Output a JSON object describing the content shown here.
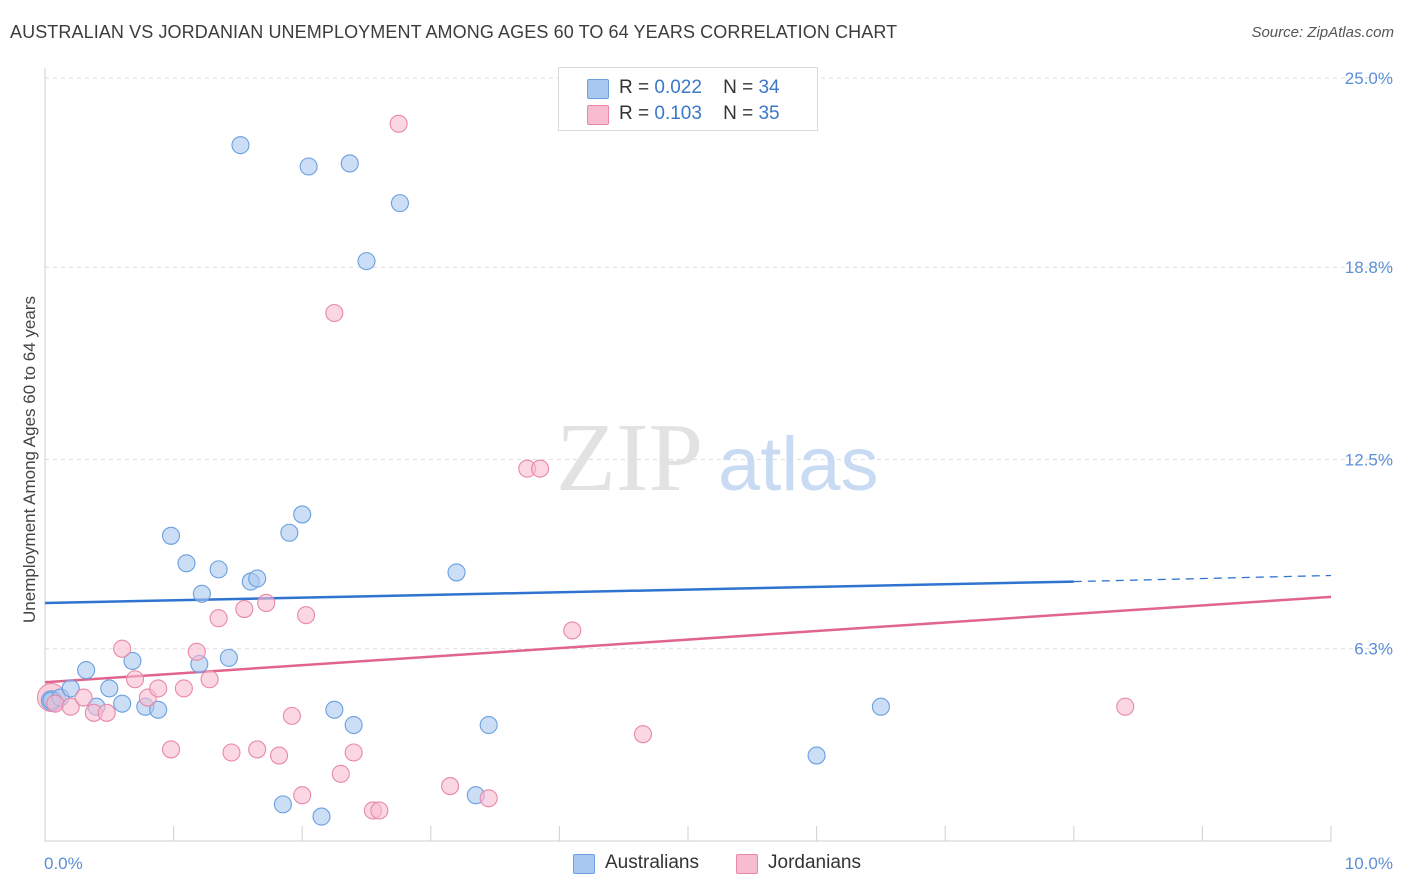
{
  "header": {
    "title": "AUSTRALIAN VS JORDANIAN UNEMPLOYMENT AMONG AGES 60 TO 64 YEARS CORRELATION CHART",
    "source": "Source: ZipAtlas.com"
  },
  "watermark": {
    "zip": "ZIP",
    "atlas": "atlas"
  },
  "legend": {
    "rows": [
      {
        "r_label": "R =",
        "r_value": "0.022",
        "n_label": "N =",
        "n_value": "34",
        "color": "#a8c8f0",
        "border": "#6a9fe0"
      },
      {
        "r_label": "R =",
        "r_value": "0.103",
        "n_label": "N =",
        "n_value": "35",
        "color": "#f8bcd0",
        "border": "#e888a8"
      }
    ]
  },
  "bottom_legend": {
    "australians": "Australians",
    "jordanians": "Jordanians"
  },
  "colors": {
    "blue_fill": "#a8c8f0",
    "blue_stroke": "#6a9fe0",
    "blue_line": "#2f74d0",
    "pink_fill": "#f8bcd0",
    "pink_stroke": "#e888a8",
    "pink_line": "#e0648c",
    "grid": "#dddddd",
    "axis_label": "#5b8fd6"
  },
  "chart_data": {
    "type": "scatter",
    "title": "AUSTRALIAN VS JORDANIAN UNEMPLOYMENT AMONG AGES 60 TO 64 YEARS CORRELATION CHART",
    "xlabel": "",
    "ylabel": "Unemployment Among Ages 60 to 64 years",
    "xlim": [
      0,
      10
    ],
    "ylim": [
      0,
      25
    ],
    "x_tick_labels": [
      "0.0%",
      "10.0%"
    ],
    "y_ticks": [
      6.3,
      12.5,
      18.8,
      25.0
    ],
    "y_tick_labels": [
      "6.3%",
      "12.5%",
      "18.8%",
      "25.0%"
    ],
    "grid": true,
    "legend_position": "top-center",
    "series": [
      {
        "name": "Australians",
        "r": 0.022,
        "n": 34,
        "trend": {
          "x0": 0,
          "y0": 7.8,
          "x1": 8,
          "y1": 8.5,
          "dash_to": 10,
          "dash_y": 8.7
        },
        "points": [
          [
            0.05,
            4.6
          ],
          [
            0.12,
            4.7
          ],
          [
            0.2,
            5.0
          ],
          [
            0.32,
            5.6
          ],
          [
            0.4,
            4.4
          ],
          [
            0.5,
            5.0
          ],
          [
            0.6,
            4.5
          ],
          [
            0.68,
            5.9
          ],
          [
            0.78,
            4.4
          ],
          [
            0.88,
            4.3
          ],
          [
            0.98,
            10.0
          ],
          [
            1.1,
            9.1
          ],
          [
            1.2,
            5.8
          ],
          [
            1.22,
            8.1
          ],
          [
            1.35,
            8.9
          ],
          [
            1.43,
            6.0
          ],
          [
            1.6,
            8.5
          ],
          [
            1.65,
            8.6
          ],
          [
            1.85,
            1.2
          ],
          [
            1.9,
            10.1
          ],
          [
            2.0,
            10.7
          ],
          [
            2.15,
            0.8
          ],
          [
            2.25,
            4.3
          ],
          [
            2.4,
            3.8
          ],
          [
            1.52,
            22.8
          ],
          [
            2.05,
            22.1
          ],
          [
            2.37,
            22.2
          ],
          [
            2.5,
            19.0
          ],
          [
            2.76,
            20.9
          ],
          [
            3.2,
            8.8
          ],
          [
            3.35,
            1.5
          ],
          [
            3.45,
            3.8
          ],
          [
            6.0,
            2.8
          ],
          [
            6.5,
            4.4
          ]
        ]
      },
      {
        "name": "Jordanians",
        "r": 0.103,
        "n": 35,
        "trend": {
          "x0": 0,
          "y0": 5.2,
          "x1": 10,
          "y1": 8.0
        },
        "points": [
          [
            0.08,
            4.5
          ],
          [
            0.2,
            4.4
          ],
          [
            0.3,
            4.7
          ],
          [
            0.38,
            4.2
          ],
          [
            0.48,
            4.2
          ],
          [
            0.6,
            6.3
          ],
          [
            0.7,
            5.3
          ],
          [
            0.8,
            4.7
          ],
          [
            0.88,
            5.0
          ],
          [
            0.98,
            3.0
          ],
          [
            1.08,
            5.0
          ],
          [
            1.18,
            6.2
          ],
          [
            1.28,
            5.3
          ],
          [
            1.35,
            7.3
          ],
          [
            1.45,
            2.9
          ],
          [
            1.55,
            7.6
          ],
          [
            1.65,
            3.0
          ],
          [
            1.72,
            7.8
          ],
          [
            1.82,
            2.8
          ],
          [
            1.92,
            4.1
          ],
          [
            2.03,
            7.4
          ],
          [
            2.25,
            17.3
          ],
          [
            2.3,
            2.2
          ],
          [
            2.4,
            2.9
          ],
          [
            2.55,
            1.0
          ],
          [
            2.6,
            1.0
          ],
          [
            2.75,
            23.5
          ],
          [
            3.15,
            1.8
          ],
          [
            3.45,
            1.4
          ],
          [
            3.75,
            12.2
          ],
          [
            3.85,
            12.2
          ],
          [
            4.1,
            6.9
          ],
          [
            4.65,
            3.5
          ],
          [
            8.4,
            4.4
          ],
          [
            2.0,
            1.5
          ]
        ]
      }
    ]
  }
}
